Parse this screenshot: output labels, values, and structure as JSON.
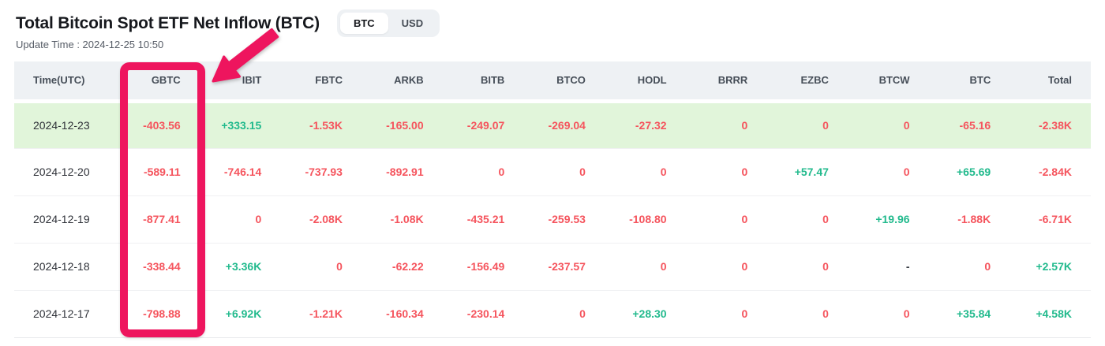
{
  "header": {
    "title": "Total Bitcoin Spot ETF Net Inflow (BTC)",
    "update_time": "Update Time : 2024-12-25 10:50",
    "toggle": {
      "options": [
        "BTC",
        "USD"
      ],
      "selected": "BTC"
    }
  },
  "colors": {
    "negative": "#f5545d",
    "positive": "#22ba8d",
    "highlight_row_bg": "#e1f5da",
    "header_row_bg": "#eef1f4",
    "annotation_pink": "#ee155e"
  },
  "annotation": {
    "highlighted_column": "GBTC",
    "shapes": [
      "arrow-pointing-to-gbtc-column",
      "rectangle-around-gbtc-column"
    ]
  },
  "table": {
    "columns": [
      "Time(UTC)",
      "GBTC",
      "IBIT",
      "FBTC",
      "ARKB",
      "BITB",
      "BTCO",
      "HODL",
      "BRRR",
      "EZBC",
      "BTCW",
      "BTC",
      "Total"
    ],
    "rows": [
      {
        "date": "2024-12-23",
        "highlighted": true,
        "values": [
          "-403.56",
          "+333.15",
          "-1.53K",
          "-165.00",
          "-249.07",
          "-269.04",
          "-27.32",
          "0",
          "0",
          "0",
          "-65.16",
          "-2.38K"
        ]
      },
      {
        "date": "2024-12-20",
        "highlighted": false,
        "values": [
          "-589.11",
          "-746.14",
          "-737.93",
          "-892.91",
          "0",
          "0",
          "0",
          "0",
          "+57.47",
          "0",
          "+65.69",
          "-2.84K"
        ]
      },
      {
        "date": "2024-12-19",
        "highlighted": false,
        "values": [
          "-877.41",
          "0",
          "-2.08K",
          "-1.08K",
          "-435.21",
          "-259.53",
          "-108.80",
          "0",
          "0",
          "+19.96",
          "-1.88K",
          "-6.71K"
        ]
      },
      {
        "date": "2024-12-18",
        "highlighted": false,
        "values": [
          "-338.44",
          "+3.36K",
          "0",
          "-62.22",
          "-156.49",
          "-237.57",
          "0",
          "0",
          "0",
          "-",
          "0",
          "+2.57K"
        ]
      },
      {
        "date": "2024-12-17",
        "highlighted": false,
        "values": [
          "-798.88",
          "+6.92K",
          "-1.21K",
          "-160.34",
          "-230.14",
          "0",
          "+28.30",
          "0",
          "0",
          "0",
          "+35.84",
          "+4.58K"
        ]
      }
    ]
  }
}
